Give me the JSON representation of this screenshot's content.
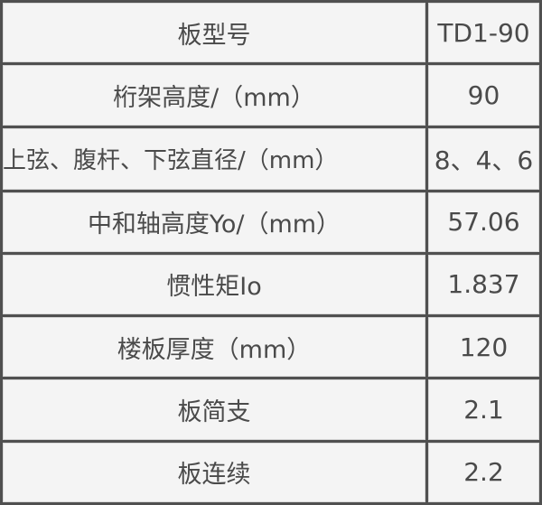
{
  "table": {
    "rows": [
      {
        "label": "板型号",
        "value": "TD1-90"
      },
      {
        "label": "桁架高度/（mm）",
        "value": "90"
      },
      {
        "label": "上弦、腹杆、下弦直径/（mm）",
        "value": "8、4、6"
      },
      {
        "label": "中和轴高度Yo/（mm）",
        "value": "57.06"
      },
      {
        "label": "惯性矩Io",
        "value": "1.837"
      },
      {
        "label": "楼板厚度（mm）",
        "value": "120"
      },
      {
        "label": "板简支",
        "value": "2.1"
      },
      {
        "label": "板连续",
        "value": "2.2"
      }
    ]
  }
}
